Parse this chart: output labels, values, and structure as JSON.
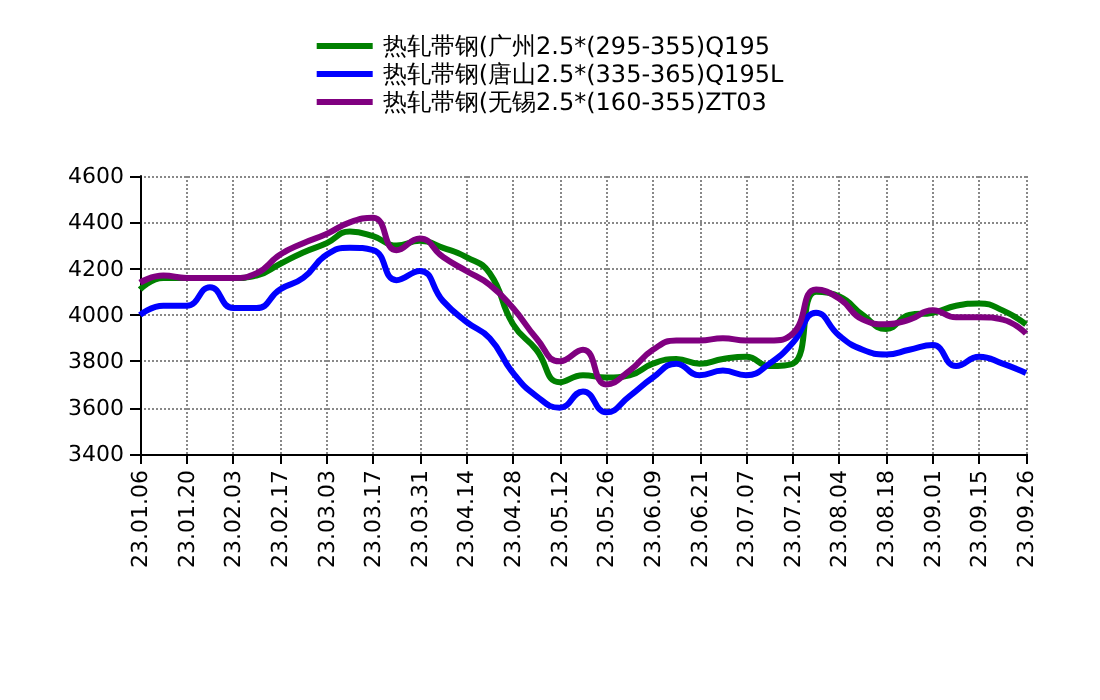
{
  "chart_data": {
    "type": "line",
    "categories": [
      "23.01.06",
      null,
      "23.01.20",
      null,
      "23.02.03",
      null,
      "23.02.17",
      null,
      "23.03.03",
      null,
      "23.03.17",
      null,
      "23.03.31",
      null,
      "23.04.14",
      null,
      "23.04.28",
      null,
      "23.05.12",
      null,
      "23.05.26",
      null,
      "23.06.09",
      null,
      "23.06.21",
      null,
      "23.07.07",
      null,
      "23.07.21",
      null,
      "23.08.04",
      null,
      "23.08.18",
      null,
      "23.09.01",
      null,
      "23.09.15",
      null,
      "23.09.26"
    ],
    "series": [
      {
        "name": "热轧带钢(广州2.5*(295-355)Q195",
        "color": "#008000",
        "values": [
          4110,
          4160,
          4160,
          4160,
          4160,
          4170,
          4220,
          4270,
          4310,
          4360,
          4340,
          4300,
          4320,
          4290,
          4250,
          4180,
          3960,
          3850,
          3710,
          3740,
          3730,
          3740,
          3790,
          3810,
          3790,
          3810,
          3820,
          3780,
          3790,
          4100,
          4080,
          4000,
          3940,
          4000,
          4010,
          4040,
          4050,
          4020,
          3960
        ]
      },
      {
        "name": "热轧带钢(唐山2.5*(335-365)Q195L",
        "color": "#0000ff",
        "values": [
          4000,
          4040,
          4040,
          4120,
          4030,
          4030,
          4110,
          4160,
          4260,
          4290,
          4280,
          4150,
          4190,
          4060,
          3970,
          3900,
          3750,
          3650,
          3600,
          3670,
          3580,
          3650,
          3730,
          3790,
          3740,
          3760,
          3740,
          3790,
          3880,
          4010,
          3910,
          3850,
          3830,
          3850,
          3870,
          3780,
          3820,
          3790,
          3750
        ]
      },
      {
        "name": "热轧带钢(无锡2.5*(160-355)ZT03",
        "color": "#800080",
        "values": [
          4140,
          4170,
          4160,
          4160,
          4160,
          4180,
          4260,
          4310,
          4350,
          4400,
          4420,
          4280,
          4330,
          4250,
          4190,
          4130,
          4030,
          3900,
          3800,
          3850,
          3700,
          3760,
          3850,
          3890,
          3890,
          3900,
          3890,
          3890,
          3920,
          4110,
          4070,
          3980,
          3960,
          3980,
          4020,
          3990,
          3990,
          3980,
          3920
        ]
      }
    ],
    "ylim": [
      3400,
      4600
    ],
    "yticks": [
      3400,
      3600,
      3800,
      4000,
      4200,
      4400,
      4600
    ],
    "grid": true,
    "legend": "top",
    "marker": "none",
    "line_style": "solid"
  }
}
